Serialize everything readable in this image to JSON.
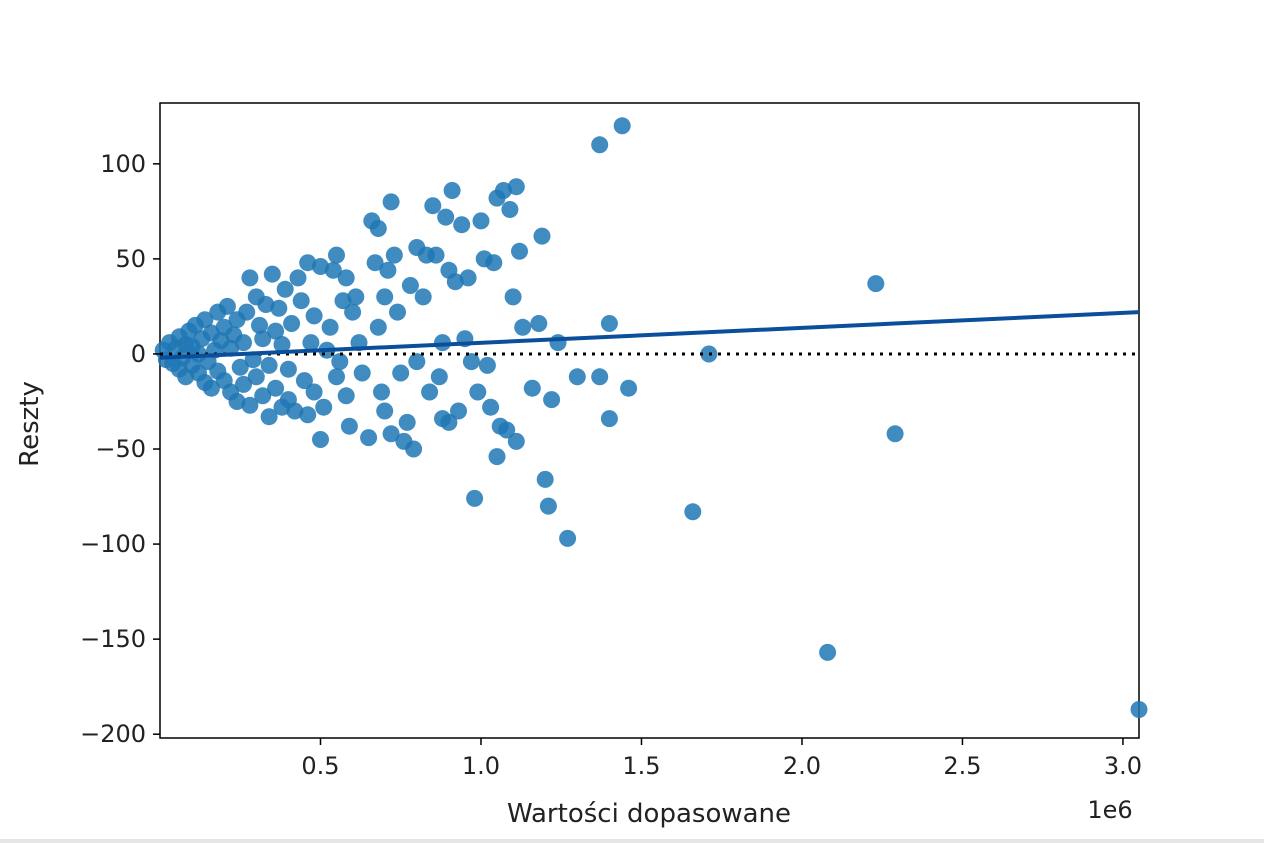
{
  "chart_data": {
    "type": "scatter",
    "xlabel": "Wartości dopasowane",
    "ylabel": "Reszty",
    "x_offset_label": "1e6",
    "x_multiplier": 1000000,
    "xlim": [
      0.0,
      3.05
    ],
    "ylim": [
      -202,
      132
    ],
    "x_ticks": [
      0.5,
      1.0,
      1.5,
      2.0,
      2.5,
      3.0
    ],
    "x_tick_labels": [
      "0.5",
      "1.0",
      "1.5",
      "2.0",
      "2.5",
      "3.0"
    ],
    "y_ticks": [
      100,
      50,
      0,
      -50,
      -100,
      -150,
      -200
    ],
    "y_tick_labels": [
      "100",
      "50",
      "0",
      "−50",
      "−100",
      "−150",
      "−200"
    ],
    "grid": false,
    "point_color": "#1f77b4",
    "line_color": "#0b4f9c",
    "reference_line": {
      "y": 0,
      "style": "dotted",
      "color": "#000000"
    },
    "regression_line": {
      "x": [
        0.0,
        3.05
      ],
      "y": [
        -2,
        22
      ]
    },
    "points": [
      [
        0.01,
        2
      ],
      [
        0.02,
        -3
      ],
      [
        0.03,
        6
      ],
      [
        0.04,
        -5
      ],
      [
        0.05,
        3
      ],
      [
        0.06,
        -8
      ],
      [
        0.06,
        9
      ],
      [
        0.07,
        -2
      ],
      [
        0.08,
        5
      ],
      [
        0.08,
        -12
      ],
      [
        0.09,
        12
      ],
      [
        0.1,
        -6
      ],
      [
        0.1,
        4
      ],
      [
        0.11,
        15
      ],
      [
        0.12,
        -10
      ],
      [
        0.12,
        0
      ],
      [
        0.13,
        8
      ],
      [
        0.14,
        -15
      ],
      [
        0.14,
        18
      ],
      [
        0.15,
        -4
      ],
      [
        0.16,
        11
      ],
      [
        0.16,
        -18
      ],
      [
        0.17,
        2
      ],
      [
        0.18,
        22
      ],
      [
        0.18,
        -9
      ],
      [
        0.19,
        7
      ],
      [
        0.2,
        -14
      ],
      [
        0.2,
        14
      ],
      [
        0.21,
        25
      ],
      [
        0.22,
        -20
      ],
      [
        0.22,
        3
      ],
      [
        0.23,
        10
      ],
      [
        0.24,
        -25
      ],
      [
        0.24,
        18
      ],
      [
        0.25,
        -7
      ],
      [
        0.26,
        6
      ],
      [
        0.26,
        -16
      ],
      [
        0.27,
        22
      ],
      [
        0.28,
        -27
      ],
      [
        0.28,
        40
      ],
      [
        0.29,
        -3
      ],
      [
        0.3,
        30
      ],
      [
        0.3,
        -12
      ],
      [
        0.31,
        15
      ],
      [
        0.32,
        -22
      ],
      [
        0.32,
        8
      ],
      [
        0.33,
        26
      ],
      [
        0.34,
        -33
      ],
      [
        0.34,
        -6
      ],
      [
        0.35,
        42
      ],
      [
        0.36,
        12
      ],
      [
        0.36,
        -18
      ],
      [
        0.37,
        24
      ],
      [
        0.38,
        -28
      ],
      [
        0.38,
        5
      ],
      [
        0.39,
        34
      ],
      [
        0.4,
        -8
      ],
      [
        0.4,
        -24
      ],
      [
        0.41,
        16
      ],
      [
        0.42,
        -30
      ],
      [
        0.43,
        40
      ],
      [
        0.44,
        28
      ],
      [
        0.45,
        -14
      ],
      [
        0.46,
        48
      ],
      [
        0.46,
        -32
      ],
      [
        0.47,
        6
      ],
      [
        0.48,
        20
      ],
      [
        0.48,
        -20
      ],
      [
        0.5,
        46
      ],
      [
        0.5,
        -45
      ],
      [
        0.51,
        -28
      ],
      [
        0.52,
        2
      ],
      [
        0.53,
        14
      ],
      [
        0.54,
        44
      ],
      [
        0.55,
        52
      ],
      [
        0.55,
        -12
      ],
      [
        0.56,
        -4
      ],
      [
        0.57,
        28
      ],
      [
        0.58,
        40
      ],
      [
        0.58,
        -22
      ],
      [
        0.59,
        -38
      ],
      [
        0.6,
        22
      ],
      [
        0.61,
        30
      ],
      [
        0.62,
        6
      ],
      [
        0.63,
        -10
      ],
      [
        0.65,
        -44
      ],
      [
        0.66,
        70
      ],
      [
        0.67,
        48
      ],
      [
        0.68,
        66
      ],
      [
        0.68,
        14
      ],
      [
        0.69,
        -20
      ],
      [
        0.7,
        30
      ],
      [
        0.7,
        -30
      ],
      [
        0.71,
        44
      ],
      [
        0.72,
        -42
      ],
      [
        0.72,
        80
      ],
      [
        0.73,
        52
      ],
      [
        0.74,
        22
      ],
      [
        0.75,
        -10
      ],
      [
        0.76,
        -46
      ],
      [
        0.77,
        -36
      ],
      [
        0.78,
        36
      ],
      [
        0.79,
        -50
      ],
      [
        0.8,
        56
      ],
      [
        0.8,
        -4
      ],
      [
        0.82,
        30
      ],
      [
        0.83,
        52
      ],
      [
        0.84,
        -20
      ],
      [
        0.85,
        78
      ],
      [
        0.86,
        52
      ],
      [
        0.87,
        -12
      ],
      [
        0.88,
        -34
      ],
      [
        0.88,
        6
      ],
      [
        0.89,
        72
      ],
      [
        0.9,
        44
      ],
      [
        0.9,
        -36
      ],
      [
        0.91,
        86
      ],
      [
        0.92,
        38
      ],
      [
        0.93,
        -30
      ],
      [
        0.94,
        68
      ],
      [
        0.95,
        8
      ],
      [
        0.96,
        40
      ],
      [
        0.97,
        -4
      ],
      [
        0.98,
        -76
      ],
      [
        0.99,
        -20
      ],
      [
        1.0,
        70
      ],
      [
        1.01,
        50
      ],
      [
        1.02,
        -6
      ],
      [
        1.03,
        -28
      ],
      [
        1.04,
        48
      ],
      [
        1.05,
        -54
      ],
      [
        1.05,
        82
      ],
      [
        1.06,
        -38
      ],
      [
        1.07,
        86
      ],
      [
        1.08,
        -40
      ],
      [
        1.09,
        76
      ],
      [
        1.1,
        30
      ],
      [
        1.11,
        88
      ],
      [
        1.11,
        -46
      ],
      [
        1.12,
        54
      ],
      [
        1.13,
        14
      ],
      [
        1.16,
        -18
      ],
      [
        1.18,
        16
      ],
      [
        1.19,
        62
      ],
      [
        1.2,
        -66
      ],
      [
        1.21,
        -80
      ],
      [
        1.22,
        -24
      ],
      [
        1.24,
        6
      ],
      [
        1.27,
        -97
      ],
      [
        1.3,
        -12
      ],
      [
        1.37,
        110
      ],
      [
        1.37,
        -12
      ],
      [
        1.4,
        16
      ],
      [
        1.4,
        -34
      ],
      [
        1.44,
        120
      ],
      [
        1.46,
        -18
      ],
      [
        1.66,
        -83
      ],
      [
        1.71,
        0
      ],
      [
        2.08,
        -157
      ],
      [
        2.23,
        37
      ],
      [
        2.29,
        -42
      ],
      [
        3.05,
        -187
      ]
    ]
  }
}
